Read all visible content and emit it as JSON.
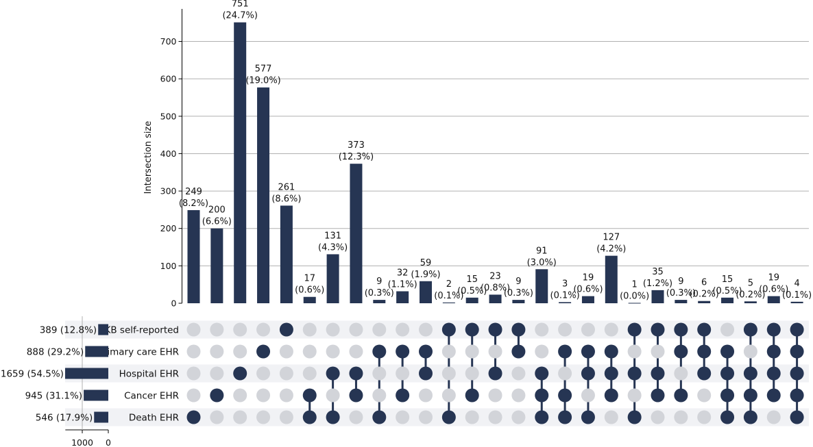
{
  "chart_data": {
    "type": "bar",
    "subtype": "upset",
    "ylabel": "Intersection size",
    "ylim": [
      0,
      790
    ],
    "yticks": [
      0,
      100,
      200,
      300,
      400,
      500,
      600,
      700
    ],
    "grid": true,
    "colors": {
      "bar": "#263553",
      "dot_on": "#263553",
      "dot_off": "#d2d4d9",
      "stripe": "#f1f2f5",
      "grid": "#b0b0b0"
    },
    "sets": [
      {
        "label": "UKB self-reported",
        "size": 389,
        "size_label": "389 (12.8%)"
      },
      {
        "label": "Primary care EHR",
        "size": 888,
        "size_label": "888 (29.2%)"
      },
      {
        "label": "Hospital EHR",
        "size": 1659,
        "size_label": "1659 (54.5%)"
      },
      {
        "label": "Cancer EHR",
        "size": 945,
        "size_label": "945 (31.1%)"
      },
      {
        "label": "Death EHR",
        "size": 546,
        "size_label": "546 (17.9%)"
      }
    ],
    "set_axis": {
      "ticks": [
        1000,
        0
      ],
      "tick_labels": [
        "1000",
        "0"
      ],
      "max": 1650
    },
    "intersections": [
      {
        "value": 249,
        "label": "249",
        "pct": "(8.2%)",
        "members": [
          4
        ]
      },
      {
        "value": 200,
        "label": "200",
        "pct": "(6.6%)",
        "members": [
          3
        ]
      },
      {
        "value": 751,
        "label": "751",
        "pct": "(24.7%)",
        "members": [
          2
        ]
      },
      {
        "value": 577,
        "label": "577",
        "pct": "(19.0%)",
        "members": [
          1
        ]
      },
      {
        "value": 261,
        "label": "261",
        "pct": "(8.6%)",
        "members": [
          0
        ]
      },
      {
        "value": 17,
        "label": "17",
        "pct": "(0.6%)",
        "members": [
          3,
          4
        ]
      },
      {
        "value": 131,
        "label": "131",
        "pct": "(4.3%)",
        "members": [
          2,
          4
        ]
      },
      {
        "value": 373,
        "label": "373",
        "pct": "(12.3%)",
        "members": [
          2,
          3
        ]
      },
      {
        "value": 9,
        "label": "9",
        "pct": "(0.3%)",
        "members": [
          1,
          4
        ]
      },
      {
        "value": 32,
        "label": "32",
        "pct": "(1.1%)",
        "members": [
          1,
          3
        ]
      },
      {
        "value": 59,
        "label": "59",
        "pct": "(1.9%)",
        "members": [
          1,
          2
        ]
      },
      {
        "value": 2,
        "label": "2",
        "pct": "(0.1%)",
        "members": [
          0,
          4
        ]
      },
      {
        "value": 15,
        "label": "15",
        "pct": "(0.5%)",
        "members": [
          0,
          3
        ]
      },
      {
        "value": 23,
        "label": "23",
        "pct": "(0.8%)",
        "members": [
          0,
          2
        ]
      },
      {
        "value": 9,
        "label": "9",
        "pct": "(0.3%)",
        "members": [
          0,
          1
        ]
      },
      {
        "value": 91,
        "label": "91",
        "pct": "(3.0%)",
        "members": [
          2,
          3,
          4
        ]
      },
      {
        "value": 3,
        "label": "3",
        "pct": "(0.1%)",
        "members": [
          1,
          3,
          4
        ]
      },
      {
        "value": 19,
        "label": "19",
        "pct": "(0.6%)",
        "members": [
          1,
          2,
          4
        ]
      },
      {
        "value": 127,
        "label": "127",
        "pct": "(4.2%)",
        "members": [
          1,
          2,
          3
        ]
      },
      {
        "value": 1,
        "label": "1",
        "pct": "(0.0%)",
        "members": [
          0,
          2,
          4
        ]
      },
      {
        "value": 35,
        "label": "35",
        "pct": "(1.2%)",
        "members": [
          0,
          2,
          3
        ]
      },
      {
        "value": 9,
        "label": "9",
        "pct": "(0.3%)",
        "members": [
          0,
          1,
          3
        ]
      },
      {
        "value": 6,
        "label": "6",
        "pct": "(0.2%)",
        "members": [
          0,
          1,
          2
        ]
      },
      {
        "value": 15,
        "label": "15",
        "pct": "(0.5%)",
        "members": [
          1,
          2,
          3,
          4
        ]
      },
      {
        "value": 5,
        "label": "5",
        "pct": "(0.2%)",
        "members": [
          0,
          2,
          3,
          4
        ]
      },
      {
        "value": 19,
        "label": "19",
        "pct": "(0.6%)",
        "members": [
          0,
          1,
          2,
          3
        ]
      },
      {
        "value": 4,
        "label": "4",
        "pct": "(0.1%)",
        "members": [
          0,
          1,
          2,
          3,
          4
        ]
      }
    ]
  }
}
